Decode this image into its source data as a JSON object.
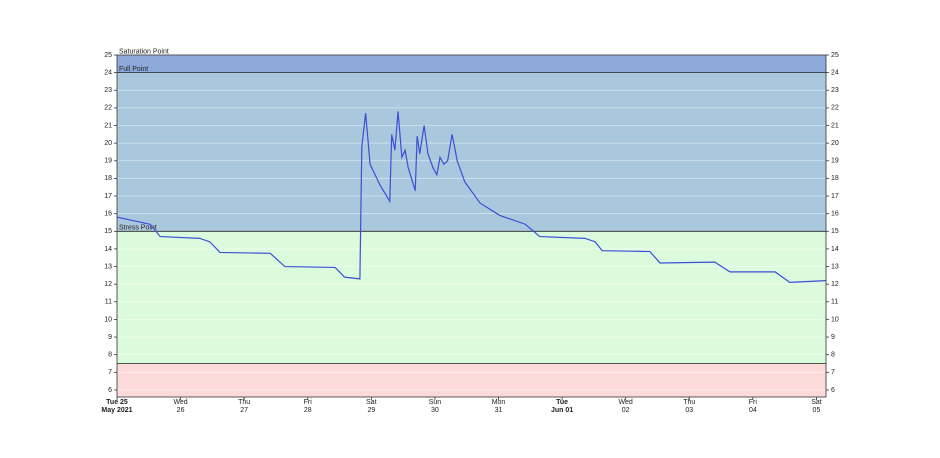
{
  "chart_data": {
    "type": "line",
    "bands": [
      {
        "label": "Saturation Point",
        "from": 24,
        "to": 25,
        "color": "#8eaadb"
      },
      {
        "label": "Full Point",
        "from": 15,
        "to": 24,
        "color": "#a9c8dd"
      },
      {
        "label": "Stress Point",
        "from": 7.5,
        "to": 15,
        "color": "#dcfadc"
      },
      {
        "from": 5.6,
        "to": 7.5,
        "color": "#fcdada"
      }
    ],
    "x": [
      0,
      0.52,
      0.68,
      1.3,
      1.46,
      1.62,
      2.41,
      2.64,
      3.43,
      3.58,
      3.82,
      3.85,
      3.91,
      3.98,
      4.14,
      4.29,
      4.32,
      4.37,
      4.42,
      4.48,
      4.53,
      4.58,
      4.69,
      4.72,
      4.76,
      4.83,
      4.89,
      4.97,
      5.03,
      5.08,
      5.14,
      5.2,
      5.27,
      5.35,
      5.47,
      5.71,
      6.02,
      6.42,
      6.65,
      7.36,
      7.52,
      7.63,
      8.38,
      8.54,
      9.4,
      9.64,
      10.35,
      10.58,
      11.15
    ],
    "series": [
      {
        "color": "#3a4fd8",
        "values": [
          15.8,
          15.4,
          14.7,
          14.6,
          14.4,
          13.8,
          13.75,
          13.0,
          12.95,
          12.4,
          12.3,
          19.8,
          21.7,
          18.8,
          17.6,
          16.7,
          20.5,
          19.6,
          21.8,
          19.2,
          19.6,
          18.6,
          17.3,
          20.4,
          19.4,
          21.0,
          19.4,
          18.6,
          18.2,
          19.2,
          18.8,
          19.0,
          20.5,
          19.0,
          17.8,
          16.6,
          15.9,
          15.4,
          14.7,
          14.6,
          14.4,
          13.9,
          13.85,
          13.2,
          13.25,
          12.7,
          12.7,
          12.1,
          12.2
        ]
      }
    ],
    "xlim": [
      0,
      11.15
    ],
    "xticks": [
      {
        "value": 0,
        "label": "Tue 25\nMay 2021"
      },
      {
        "value": 1,
        "label": "Wed\n26"
      },
      {
        "value": 2,
        "label": "Thu\n27"
      },
      {
        "value": 3,
        "label": "Fri\n28"
      },
      {
        "value": 4,
        "label": "Sat\n29"
      },
      {
        "value": 5,
        "label": "Sun\n30"
      },
      {
        "value": 6,
        "label": "Mon\n31"
      },
      {
        "value": 7,
        "label": "Tue\nJun 01"
      },
      {
        "value": 8,
        "label": "Wed\n02"
      },
      {
        "value": 9,
        "label": "Thu\n03"
      },
      {
        "value": 10,
        "label": "Fri\n04"
      },
      {
        "value": 11,
        "label": "Sat\n05"
      }
    ],
    "ylim": [
      5.6,
      25
    ],
    "yticks": [
      6,
      7,
      8,
      9,
      10,
      11,
      12,
      13,
      14,
      15,
      16,
      17,
      18,
      19,
      20,
      21,
      22,
      23,
      24,
      25
    ],
    "grid": true
  }
}
